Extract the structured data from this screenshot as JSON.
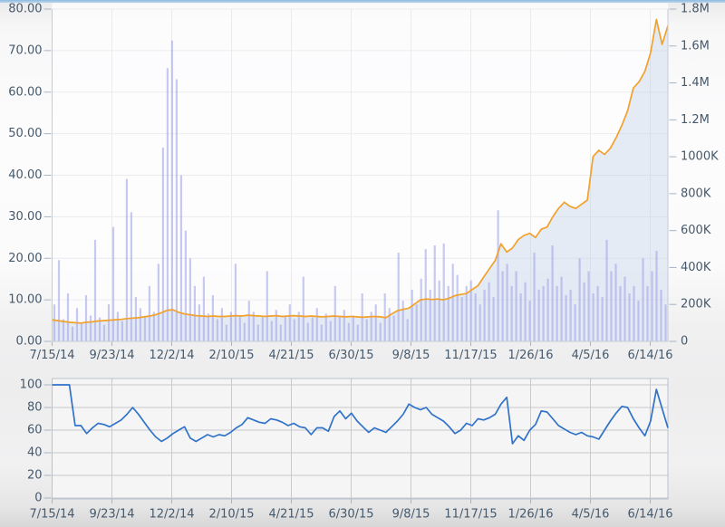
{
  "page": {
    "top_border_color": "#9cc2e4",
    "background_color": "#f4f4f5"
  },
  "palette": {
    "price_line": "#f1a12c",
    "price_area_fill": "rgba(196,209,230,0.42)",
    "volume_bar": "rgba(154,158,232,0.55)",
    "oscillator_line": "#2f72c8",
    "axis_text": "#45596c",
    "tick_dash": "#a7b4c4",
    "grid_light": "#ebebee",
    "grid_dark": "#c9c9ce",
    "panel_edge": "#c6cbd5",
    "lower_box_edge": "#b6c2ce",
    "plot_bg_top": "#fdfdfe",
    "plot_bg_bottom": "#f5f5f6"
  },
  "chart_data": [
    {
      "type": "line+bar",
      "panel": "price-volume",
      "title": "",
      "legend": "none",
      "grid": true,
      "x_labels": [
        "7/15/14",
        "9/23/14",
        "12/2/14",
        "2/10/15",
        "4/21/15",
        "6/30/15",
        "9/8/15",
        "11/17/15",
        "1/26/16",
        "4/5/16",
        "6/14/16"
      ],
      "left_axis": {
        "labels": [
          "0.00",
          "10.00",
          "20.00",
          "30.00",
          "40.00",
          "50.00",
          "60.00",
          "70.00",
          "80.00"
        ],
        "min": 0,
        "max": 80,
        "step": 10
      },
      "right_axis": {
        "labels": [
          "0",
          "200K",
          "400K",
          "600K",
          "800K",
          "1000K",
          "1.2M",
          "1.4M",
          "1.6M",
          "1.8M"
        ],
        "min_k": 0,
        "max_k": 1800,
        "step_k": 200
      },
      "series": [
        {
          "name": "price",
          "type": "line",
          "axis": "left",
          "color": "#f1a12c",
          "area_fill": "rgba(196,209,230,0.42)",
          "values": [
            5.2,
            5.0,
            4.8,
            4.6,
            4.5,
            4.4,
            4.6,
            4.7,
            4.9,
            5.0,
            5.1,
            5.2,
            5.3,
            5.5,
            5.6,
            5.7,
            5.9,
            6.1,
            6.4,
            6.9,
            7.5,
            7.6,
            7.0,
            6.6,
            6.4,
            6.2,
            6.1,
            6.0,
            6.1,
            6.0,
            6.0,
            6.1,
            6.2,
            6.1,
            6.3,
            6.2,
            6.1,
            6.0,
            6.1,
            6.2,
            6.0,
            6.1,
            6.2,
            6.1,
            6.0,
            6.1,
            6.0,
            5.9,
            6.0,
            6.1,
            6.0,
            5.9,
            6.0,
            5.9,
            5.8,
            5.9,
            6.0,
            5.9,
            5.7,
            6.6,
            7.4,
            7.7,
            8.0,
            9.0,
            10.0,
            10.2,
            10.1,
            10.2,
            10.0,
            10.4,
            11.0,
            11.3,
            11.5,
            12.5,
            13.4,
            15.5,
            17.5,
            19.5,
            23.5,
            21.5,
            22.5,
            24.5,
            25.5,
            26.0,
            25.0,
            27.0,
            27.5,
            30.0,
            32.0,
            33.5,
            32.5,
            32.0,
            33.0,
            34.0,
            44.5,
            46.0,
            45.0,
            46.5,
            49.0,
            52.0,
            55.5,
            61.0,
            62.5,
            65.0,
            69.5,
            77.5,
            71.5,
            76.0
          ]
        },
        {
          "name": "volume",
          "type": "bar",
          "axis": "right",
          "color": "rgba(154,158,232,0.55)",
          "values_k": [
            200,
            440,
            120,
            260,
            80,
            180,
            100,
            250,
            140,
            550,
            130,
            90,
            200,
            620,
            160,
            110,
            880,
            700,
            240,
            180,
            130,
            300,
            160,
            420,
            1050,
            1480,
            1630,
            1420,
            900,
            600,
            450,
            300,
            200,
            350,
            150,
            250,
            120,
            180,
            90,
            160,
            420,
            140,
            100,
            220,
            160,
            90,
            130,
            380,
            110,
            170,
            90,
            140,
            200,
            120,
            160,
            350,
            100,
            130,
            180,
            90,
            150,
            110,
            300,
            130,
            170,
            100,
            140,
            90,
            260,
            120,
            160,
            200,
            100,
            260,
            180,
            140,
            480,
            220,
            120,
            280,
            200,
            340,
            500,
            280,
            520,
            330,
            530,
            300,
            420,
            360,
            240,
            300,
            330,
            260,
            200,
            280,
            320,
            240,
            710,
            380,
            420,
            300,
            380,
            260,
            320,
            220,
            480,
            280,
            300,
            340,
            520,
            300,
            350,
            250,
            280,
            200,
            450,
            320,
            380,
            260,
            300,
            240,
            550,
            380,
            420,
            300,
            350,
            260,
            300,
            220,
            450,
            300,
            380,
            490,
            280,
            200
          ]
        }
      ]
    },
    {
      "type": "line",
      "panel": "oscillator",
      "title": "",
      "legend": "none",
      "grid": true,
      "x_labels": [
        "7/15/14",
        "9/23/14",
        "12/2/14",
        "2/10/15",
        "4/21/15",
        "6/30/15",
        "9/8/15",
        "11/17/15",
        "1/26/16",
        "4/5/16",
        "6/14/16"
      ],
      "y_axis": {
        "labels": [
          "0",
          "20",
          "40",
          "60",
          "80",
          "100"
        ],
        "min": 0,
        "max": 100,
        "step": 20
      },
      "series": [
        {
          "name": "oscillator",
          "type": "line",
          "color": "#2f72c8",
          "values": [
            100,
            100,
            100,
            100,
            64,
            64,
            57,
            62,
            66,
            65,
            63,
            66,
            69,
            74,
            80,
            74,
            67,
            60,
            54,
            50,
            53,
            57,
            60,
            63,
            53,
            50,
            53,
            56,
            54,
            56,
            55,
            58,
            62,
            65,
            71,
            69,
            67,
            66,
            70,
            69,
            67,
            64,
            66,
            63,
            62,
            56,
            62,
            62,
            59,
            72,
            77,
            70,
            75,
            68,
            63,
            58,
            62,
            60,
            58,
            63,
            68,
            74,
            83,
            80,
            78,
            80,
            74,
            71,
            68,
            63,
            57,
            60,
            66,
            64,
            70,
            69,
            71,
            74,
            83,
            89,
            48,
            55,
            51,
            60,
            65,
            77,
            76,
            70,
            64,
            61,
            58,
            56,
            58,
            55,
            54,
            52,
            60,
            68,
            75,
            81,
            80,
            70,
            62,
            55,
            68,
            96,
            79,
            62
          ]
        }
      ]
    }
  ]
}
